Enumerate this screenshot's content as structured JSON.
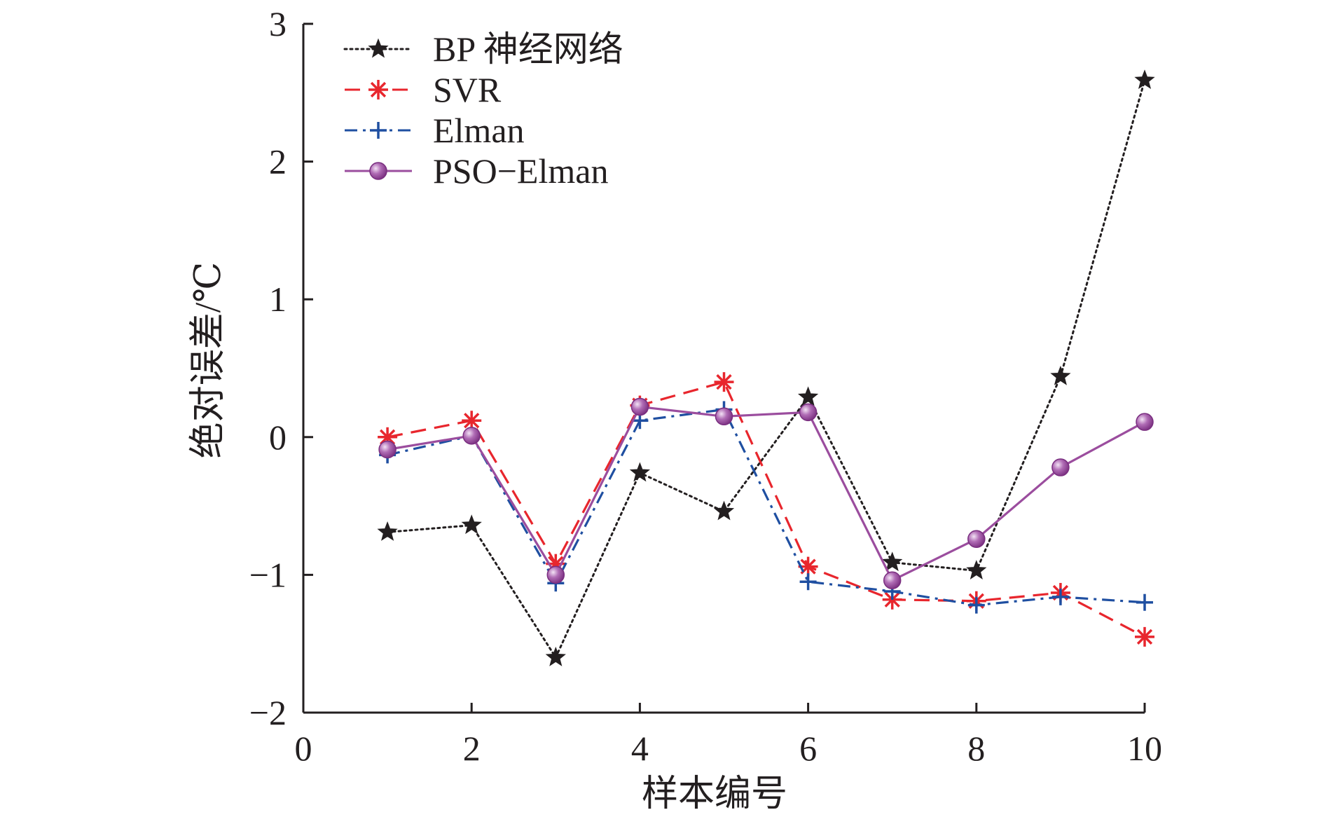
{
  "chart_data": {
    "type": "line",
    "title": "",
    "xlabel": "样本编号",
    "ylabel": "绝对误差/℃",
    "xlim": [
      0,
      10
    ],
    "ylim": [
      -2,
      3
    ],
    "xticks": [
      0,
      2,
      4,
      6,
      8,
      10
    ],
    "xtick_labels": [
      "0",
      "2",
      "4",
      "6",
      "8",
      "10"
    ],
    "yticks": [
      -2,
      -1,
      0,
      1,
      2,
      3
    ],
    "ytick_labels": [
      "−2",
      "−1",
      "0",
      "1",
      "2",
      "3"
    ],
    "grid": false,
    "legend_position": "top-left",
    "x": [
      1,
      2,
      3,
      4,
      5,
      6,
      7,
      8,
      9,
      10
    ],
    "series": [
      {
        "name": "BP 神经网络",
        "color": "#231f20",
        "line_style": "dotted",
        "marker": "star",
        "values": [
          -0.69,
          -0.64,
          -1.6,
          -0.26,
          -0.54,
          0.29,
          -0.91,
          -0.97,
          0.44,
          2.59
        ]
      },
      {
        "name": "SVR",
        "color": "#e8262d",
        "line_style": "dashed",
        "marker": "asterisk",
        "values": [
          0.0,
          0.12,
          -0.92,
          0.23,
          0.4,
          -0.94,
          -1.18,
          -1.19,
          -1.13,
          -1.45
        ]
      },
      {
        "name": "Elman",
        "color": "#1f4fa1",
        "line_style": "dash-dot",
        "marker": "plus",
        "values": [
          -0.13,
          0.01,
          -1.06,
          0.12,
          0.2,
          -1.05,
          -1.12,
          -1.22,
          -1.16,
          -1.2
        ]
      },
      {
        "name": "PSO−Elman",
        "color": "#9b4d9e",
        "line_style": "solid",
        "marker": "sphere",
        "values": [
          -0.09,
          0.01,
          -1.0,
          0.22,
          0.15,
          0.18,
          -1.04,
          -0.74,
          -0.22,
          0.11
        ]
      }
    ]
  }
}
